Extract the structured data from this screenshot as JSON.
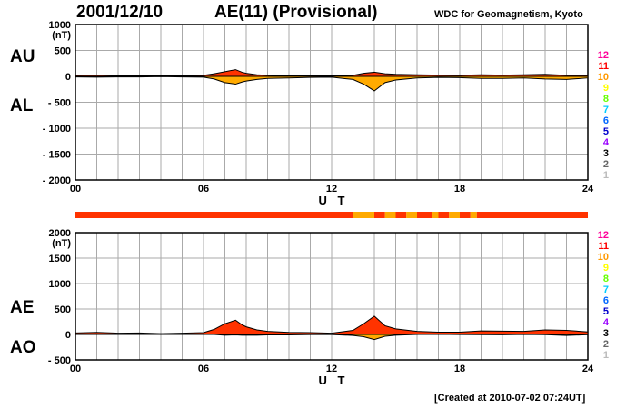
{
  "header": {
    "date": "2001/12/10",
    "title": "AE(11) (Provisional)",
    "source": "WDC for Geomagnetism, Kyoto"
  },
  "footer": {
    "created": "[Created at 2010-07-02 07:24UT]"
  },
  "colors": {
    "positive_fill": "#ff3300",
    "negative_fill": "#ffaa00",
    "activity_high": "#ff3300",
    "activity_mid": "#ffaa00",
    "grid": "#aaaaaa"
  },
  "chart_data": [
    {
      "type": "area",
      "title": "AU / AL",
      "labels": [
        "AU",
        "AL"
      ],
      "ylabel": "(nT)",
      "xlabel": "U T",
      "xlim": [
        0,
        24
      ],
      "ylim": [
        -2000,
        1000
      ],
      "xticks": [
        "00",
        "06",
        "12",
        "18",
        "24"
      ],
      "yticks": [
        "1000",
        "500",
        "0",
        "- 500",
        "- 1000",
        "- 1500",
        "- 2000"
      ],
      "grid": true,
      "series": [
        {
          "name": "AU",
          "x": [
            0,
            1,
            2,
            3,
            4,
            5,
            6,
            6.5,
            7,
            7.5,
            7.8,
            8,
            8.5,
            9,
            10,
            11,
            12,
            13,
            13.5,
            14,
            14.5,
            15,
            16,
            17,
            18,
            19,
            20,
            21,
            22,
            23,
            24
          ],
          "values": [
            20,
            25,
            15,
            20,
            10,
            15,
            20,
            50,
            90,
            130,
            80,
            60,
            30,
            20,
            10,
            15,
            10,
            20,
            60,
            80,
            50,
            40,
            30,
            25,
            20,
            30,
            25,
            30,
            40,
            20,
            20
          ]
        },
        {
          "name": "AL",
          "x": [
            0,
            1,
            2,
            3,
            4,
            5,
            6,
            6.5,
            7,
            7.5,
            7.8,
            8,
            8.5,
            9,
            10,
            11,
            12,
            13,
            13.5,
            14,
            14.5,
            15,
            16,
            17,
            18,
            19,
            20,
            21,
            22,
            23,
            24
          ],
          "values": [
            -10,
            -15,
            -10,
            -10,
            -5,
            -10,
            -15,
            -50,
            -120,
            -150,
            -110,
            -90,
            -60,
            -40,
            -30,
            -20,
            -15,
            -60,
            -150,
            -280,
            -120,
            -70,
            -30,
            -20,
            -25,
            -40,
            -40,
            -30,
            -50,
            -60,
            -30
          ]
        }
      ],
      "level_legend": [
        "12",
        "11",
        "10",
        "9",
        "8",
        "7",
        "6",
        "5",
        "4",
        "3",
        "2",
        "1"
      ]
    },
    {
      "type": "area",
      "title": "AE / AO",
      "labels": [
        "AE",
        "AO"
      ],
      "ylabel": "(nT)",
      "xlabel": "U T",
      "xlim": [
        0,
        24
      ],
      "ylim": [
        -500,
        2000
      ],
      "xticks": [
        "00",
        "06",
        "12",
        "18",
        "24"
      ],
      "yticks": [
        "2000",
        "1500",
        "1000",
        "500",
        "0",
        "- 500"
      ],
      "grid": true,
      "series": [
        {
          "name": "AE",
          "x": [
            0,
            1,
            2,
            3,
            4,
            5,
            6,
            6.5,
            7,
            7.5,
            7.8,
            8,
            8.5,
            9,
            10,
            11,
            12,
            13,
            13.5,
            14,
            14.5,
            15,
            16,
            17,
            18,
            19,
            20,
            21,
            22,
            23,
            24
          ],
          "values": [
            30,
            40,
            25,
            30,
            15,
            25,
            35,
            100,
            210,
            280,
            190,
            150,
            90,
            60,
            40,
            35,
            25,
            80,
            210,
            360,
            170,
            110,
            60,
            45,
            45,
            70,
            65,
            60,
            90,
            80,
            50
          ]
        },
        {
          "name": "AO",
          "x": [
            0,
            1,
            2,
            3,
            4,
            5,
            6,
            6.5,
            7,
            7.5,
            7.8,
            8,
            8.5,
            9,
            10,
            11,
            12,
            13,
            13.5,
            14,
            14.5,
            15,
            16,
            17,
            18,
            19,
            20,
            21,
            22,
            23,
            24
          ],
          "values": [
            5,
            5,
            2,
            5,
            2,
            2,
            2,
            0,
            -15,
            -10,
            -15,
            -15,
            -15,
            -10,
            -10,
            -2,
            -2,
            -20,
            -45,
            -100,
            -35,
            -15,
            0,
            2,
            -2,
            -5,
            -7,
            0,
            -5,
            -20,
            -5
          ]
        }
      ],
      "level_legend": [
        "12",
        "11",
        "10",
        "9",
        "8",
        "7",
        "6",
        "5",
        "4",
        "3",
        "2",
        "1"
      ]
    }
  ],
  "station_bar": {
    "description": "stations contributing per time segment (11 = red, 10 = orange)",
    "segments": [
      {
        "from": 0,
        "to": 13,
        "level": 11
      },
      {
        "from": 13,
        "to": 14,
        "level": 10
      },
      {
        "from": 14,
        "to": 14.5,
        "level": 11
      },
      {
        "from": 14.5,
        "to": 15,
        "level": 10
      },
      {
        "from": 15,
        "to": 15.5,
        "level": 11
      },
      {
        "from": 15.5,
        "to": 16,
        "level": 10
      },
      {
        "from": 16,
        "to": 16.7,
        "level": 11
      },
      {
        "from": 16.7,
        "to": 17,
        "level": 10
      },
      {
        "from": 17,
        "to": 17.5,
        "level": 11
      },
      {
        "from": 17.5,
        "to": 18,
        "level": 10
      },
      {
        "from": 18,
        "to": 18.5,
        "level": 11
      },
      {
        "from": 18.5,
        "to": 18.8,
        "level": 10
      },
      {
        "from": 18.8,
        "to": 24,
        "level": 11
      }
    ]
  },
  "level_colors": {
    "12": "#ff0099",
    "11": "#ff0000",
    "10": "#ff9900",
    "9": "#ffff00",
    "8": "#66ff00",
    "7": "#00ccff",
    "6": "#0066ff",
    "5": "#0000cc",
    "4": "#9900ff",
    "3": "#000000",
    "2": "#666666",
    "1": "#bbbbbb"
  }
}
